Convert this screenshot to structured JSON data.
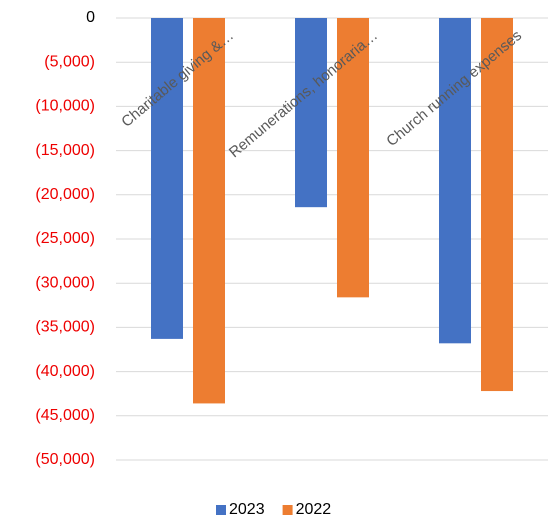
{
  "chart_data": {
    "type": "bar",
    "categories": [
      "Charitable giving &…",
      "Remunerations, honoraria…",
      "Church running expenses"
    ],
    "series": [
      {
        "name": "2023",
        "color": "#4472c4",
        "values": [
          -36300,
          -21400,
          -36800
        ]
      },
      {
        "name": "2022",
        "color": "#ed7d31",
        "values": [
          -43600,
          -31600,
          -42200
        ]
      }
    ],
    "ylim": [
      -50000,
      0
    ],
    "yticks": [
      0,
      {
        "value": -5000,
        "label": "(5,000)"
      },
      {
        "value": -10000,
        "label": "(10,000)"
      },
      {
        "value": -15000,
        "label": "(15,000)"
      },
      {
        "value": -20000,
        "label": "(20,000)"
      },
      {
        "value": -25000,
        "label": "(25,000)"
      },
      {
        "value": -30000,
        "label": "(30,000)"
      },
      {
        "value": -35000,
        "label": "(35,000)"
      },
      {
        "value": -40000,
        "label": "(40,000)"
      },
      {
        "value": -45000,
        "label": "(45,000)"
      },
      {
        "value": -50000,
        "label": "(50,000)"
      }
    ],
    "negative_tick_color": "#ee0000",
    "grid": true,
    "legend": "bottom"
  }
}
